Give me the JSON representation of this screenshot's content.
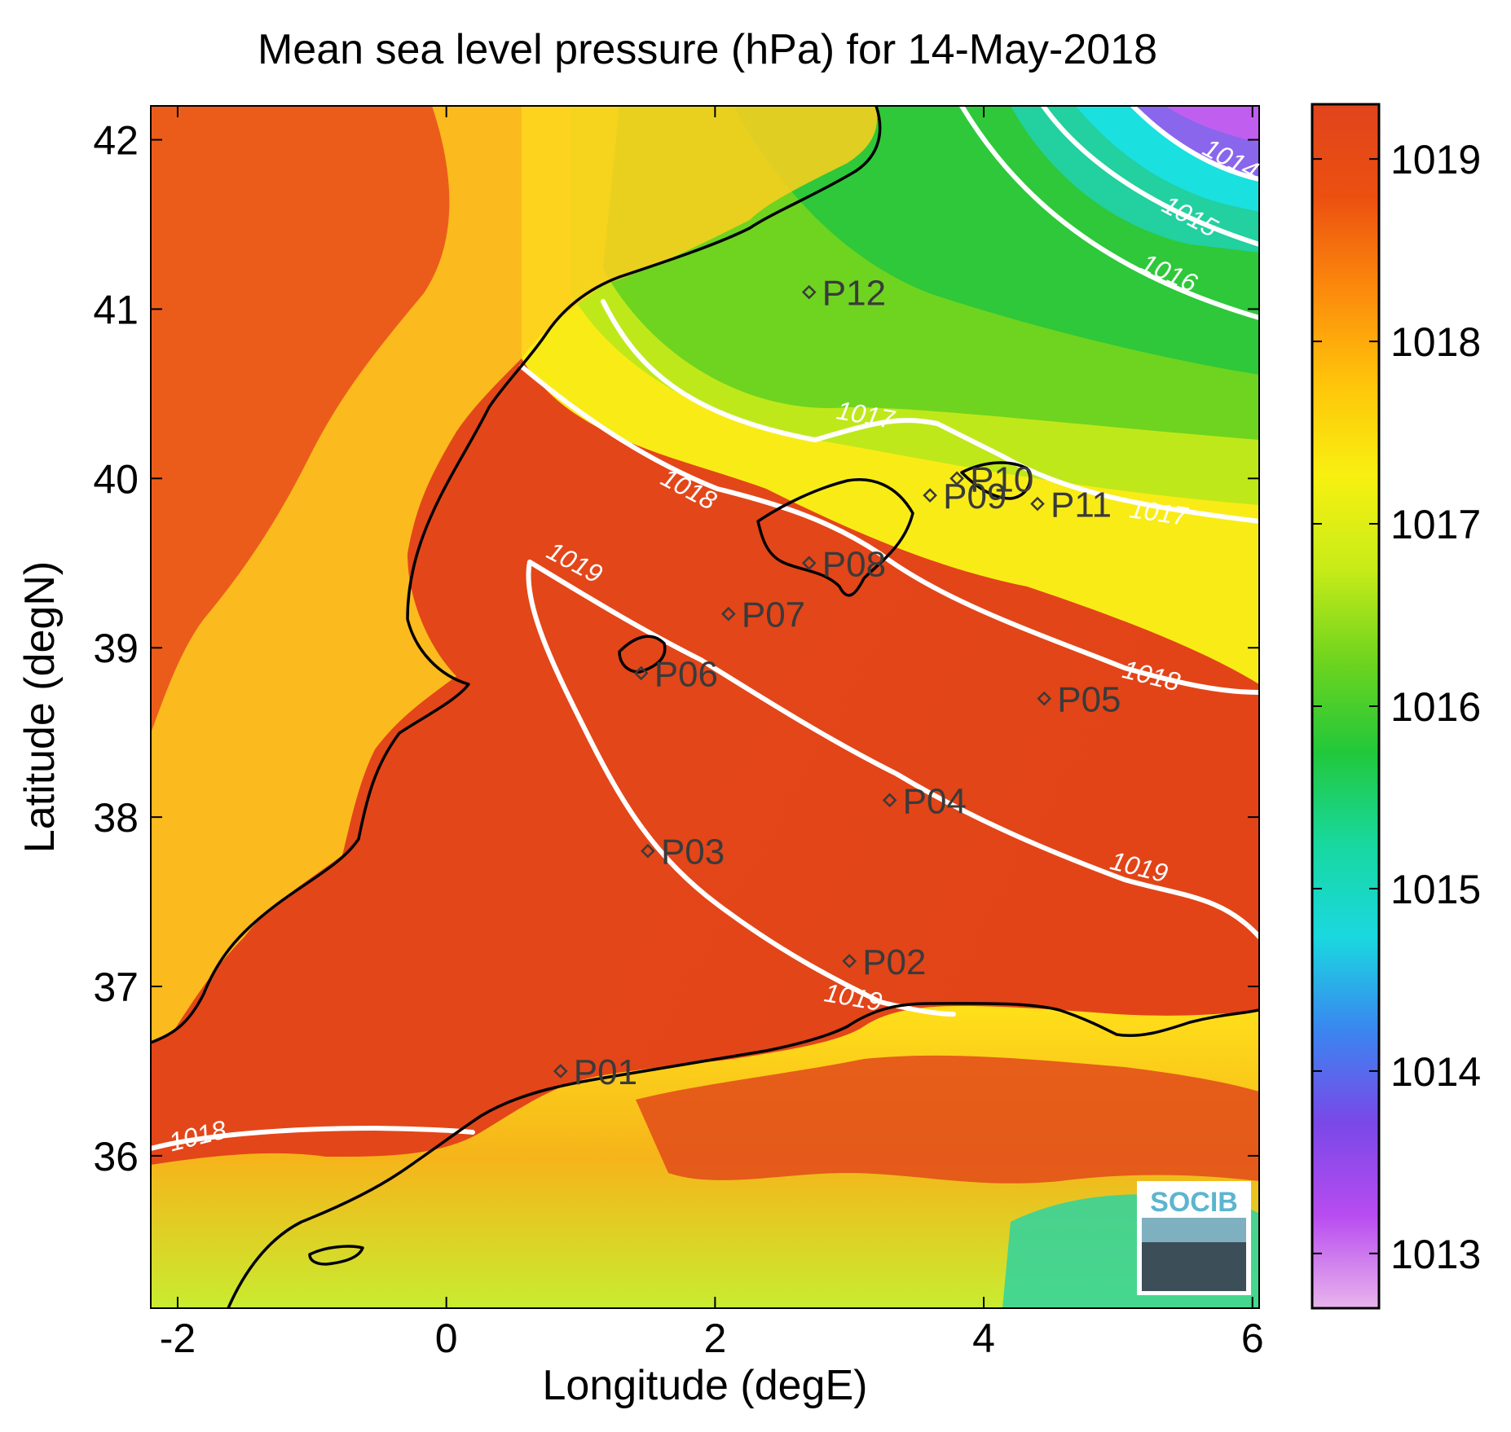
{
  "title": "Mean sea level pressure (hPa) for 14-May-2018",
  "x_axis": {
    "label": "Longitude (degE)",
    "range": [
      -2.2,
      6.05
    ],
    "ticks": [
      "-2",
      "0",
      "2",
      "4",
      "6"
    ]
  },
  "y_axis": {
    "label": "Latitude (degN)",
    "range": [
      35.1,
      42.2
    ],
    "ticks": [
      "36",
      "37",
      "38",
      "39",
      "40",
      "41",
      "42"
    ]
  },
  "colorbar": {
    "range": [
      1012.7,
      1019.3
    ],
    "ticks": [
      "1013",
      "1014",
      "1015",
      "1016",
      "1017",
      "1018",
      "1019"
    ],
    "colors": [
      "#e8b4ec",
      "#b84cf0",
      "#7a48e8",
      "#3a86f0",
      "#1ad8e0",
      "#18d8a0",
      "#22c83a",
      "#6fd41e",
      "#c8ec18",
      "#f8f010",
      "#ffc40a",
      "#fc8a0c",
      "#ec5010",
      "#e0441c"
    ]
  },
  "stations": [
    {
      "id": "P01",
      "lon": 0.85,
      "lat": 36.5
    },
    {
      "id": "P02",
      "lon": 3.0,
      "lat": 37.15
    },
    {
      "id": "P03",
      "lon": 1.5,
      "lat": 37.8
    },
    {
      "id": "P04",
      "lon": 3.3,
      "lat": 38.1
    },
    {
      "id": "P05",
      "lon": 4.45,
      "lat": 38.7
    },
    {
      "id": "P06",
      "lon": 1.45,
      "lat": 38.85
    },
    {
      "id": "P07",
      "lon": 2.1,
      "lat": 39.2
    },
    {
      "id": "P08",
      "lon": 2.7,
      "lat": 39.5
    },
    {
      "id": "P09",
      "lon": 3.6,
      "lat": 39.9
    },
    {
      "id": "P10",
      "lon": 3.8,
      "lat": 40.0
    },
    {
      "id": "P11",
      "lon": 4.4,
      "lat": 39.85
    },
    {
      "id": "P12",
      "lon": 2.7,
      "lat": 41.1
    }
  ],
  "contour_labels": [
    "1014",
    "1015",
    "1016",
    "1017",
    "1017",
    "1018",
    "1018",
    "1018",
    "1019",
    "1019",
    "1019"
  ],
  "logo": {
    "text": "SOCIB"
  },
  "colors": {
    "land_low": "#ffd21a",
    "sea_high": "#e24a1c",
    "contour": "#ffffff",
    "coastline": "#000000",
    "station": "#3a3a3a"
  }
}
